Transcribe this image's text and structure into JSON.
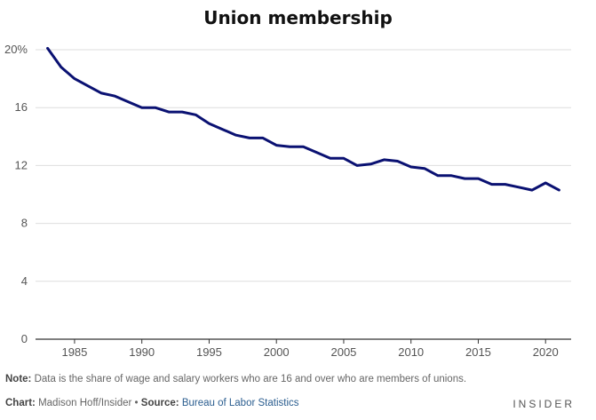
{
  "title": "Union membership",
  "chart_data": {
    "type": "line",
    "title": "Union membership",
    "x": [
      1983,
      1984,
      1985,
      1986,
      1987,
      1988,
      1989,
      1990,
      1991,
      1992,
      1993,
      1994,
      1995,
      1996,
      1997,
      1998,
      1999,
      2000,
      2001,
      2002,
      2003,
      2004,
      2005,
      2006,
      2007,
      2008,
      2009,
      2010,
      2011,
      2012,
      2013,
      2014,
      2015,
      2016,
      2017,
      2018,
      2019,
      2020,
      2021
    ],
    "series": [
      {
        "values": [
          20.1,
          18.8,
          18.0,
          17.5,
          17.0,
          16.8,
          16.4,
          16.0,
          16.0,
          15.7,
          15.7,
          15.5,
          14.9,
          14.5,
          14.1,
          13.9,
          13.9,
          13.4,
          13.3,
          13.3,
          12.9,
          12.5,
          12.5,
          12.0,
          12.1,
          12.4,
          12.3,
          11.9,
          11.8,
          11.3,
          11.3,
          11.1,
          11.1,
          10.7,
          10.7,
          10.5,
          10.3,
          10.8,
          10.3
        ]
      }
    ],
    "ylim": [
      0,
      20
    ],
    "yticks": [
      0,
      4,
      8,
      12,
      16,
      20
    ],
    "ytick_labels": [
      "0",
      "4",
      "8",
      "12",
      "16",
      "20%"
    ],
    "xticks": [
      1985,
      1990,
      1995,
      2000,
      2005,
      2010,
      2015,
      2020
    ],
    "xtick_labels": [
      "1985",
      "1990",
      "1995",
      "2000",
      "2005",
      "2010",
      "2015",
      "2020"
    ],
    "line_color": "#0a1172",
    "grid": true
  },
  "note": {
    "label": "Note:",
    "text": "Data is the share of wage and salary workers who are 16 and over who are members of unions."
  },
  "credit": {
    "chart_label": "Chart:",
    "author": "Madison Hoff/Insider",
    "separator": "•",
    "source_label": "Source:",
    "source": "Bureau of Labor Statistics"
  },
  "brand": "INSIDER"
}
